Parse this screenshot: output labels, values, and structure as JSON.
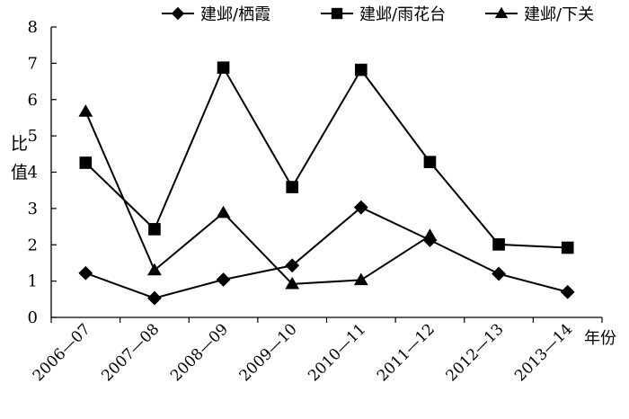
{
  "chart_data": {
    "type": "line",
    "title": "",
    "xlabel": "年份",
    "ylabel": "比值",
    "ylim": [
      0,
      8
    ],
    "yticks": [
      "0",
      "1",
      "2",
      "3",
      "4",
      "5",
      "6",
      "7",
      "8"
    ],
    "categories": [
      "2006—07",
      "2007—08",
      "2008—09",
      "2009—10",
      "2010—11",
      "2011—12",
      "2012—13",
      "2013—14"
    ],
    "series": [
      {
        "name": "建邺/栖霞",
        "marker": "diamond",
        "values": [
          1.22,
          0.53,
          1.04,
          1.43,
          3.03,
          2.13,
          1.2,
          0.7
        ]
      },
      {
        "name": "建邺/雨花台",
        "marker": "square",
        "values": [
          4.26,
          2.43,
          6.88,
          3.59,
          6.82,
          4.28,
          2.01,
          1.92
        ]
      },
      {
        "name": "建邺/下关",
        "marker": "triangle",
        "values": [
          5.67,
          1.3,
          2.88,
          0.92,
          1.03,
          2.25,
          null,
          null
        ]
      }
    ],
    "legend_position": "top",
    "grid": false,
    "line_color": "#000000"
  }
}
